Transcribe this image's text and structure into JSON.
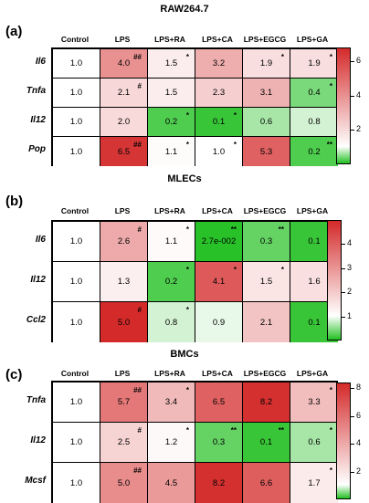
{
  "panels": [
    {
      "label": "(a)",
      "title": "RAW264.7",
      "columns": [
        "Control",
        "LPS",
        "LPS+RA",
        "LPS+CA",
        "LPS+EGCG",
        "LPS+GA"
      ],
      "rows": [
        "Il6",
        "Tnfa",
        "Il12",
        "Pop"
      ],
      "values": [
        [
          "1.0",
          "4.0",
          "1.5",
          "3.2",
          "1.9",
          "1.9"
        ],
        [
          "1.0",
          "2.1",
          "1.5",
          "2.3",
          "3.1",
          "0.4"
        ],
        [
          "1.0",
          "2.0",
          "0.2",
          "0.1",
          "0.6",
          "0.8"
        ],
        [
          "1.0",
          "6.5",
          "1.1",
          "1.0",
          "5.3",
          "0.2"
        ]
      ],
      "numeric": [
        [
          1.0,
          4.0,
          1.5,
          3.2,
          1.9,
          1.9
        ],
        [
          1.0,
          2.1,
          1.5,
          2.3,
          3.1,
          0.4
        ],
        [
          1.0,
          2.0,
          0.2,
          0.1,
          0.6,
          0.8
        ],
        [
          1.0,
          6.5,
          1.1,
          1.0,
          5.3,
          0.2
        ]
      ],
      "sig": [
        [
          "",
          "##",
          "*",
          "",
          "*",
          "*"
        ],
        [
          "",
          "#",
          "",
          "",
          "",
          "*"
        ],
        [
          "",
          "",
          "*",
          "*",
          "",
          ""
        ],
        [
          "",
          "##",
          "*",
          "*",
          "",
          "**"
        ]
      ],
      "scale": {
        "min": 0,
        "max": 6.8
      },
      "ticks": [
        "6",
        "4",
        "2"
      ],
      "tick_values": [
        6,
        4,
        2
      ]
    },
    {
      "label": "(b)",
      "title": "MLECs",
      "columns": [
        "Control",
        "LPS",
        "LPS+RA",
        "LPS+CA",
        "LPS+EGCG",
        "LPS+GA"
      ],
      "rows": [
        "Il6",
        "Il12",
        "Ccl2"
      ],
      "values": [
        [
          "1.0",
          "2.6",
          "1.1",
          "2.7e-002",
          "0.3",
          "0.1"
        ],
        [
          "1.0",
          "1.3",
          "0.2",
          "4.1",
          "1.5",
          "1.6"
        ],
        [
          "1.0",
          "5.0",
          "0.8",
          "0.9",
          "2.1",
          "0.1"
        ]
      ],
      "numeric": [
        [
          1.0,
          2.6,
          1.1,
          0.027,
          0.3,
          0.1
        ],
        [
          1.0,
          1.3,
          0.2,
          4.1,
          1.5,
          1.6
        ],
        [
          1.0,
          5.0,
          0.8,
          0.9,
          2.1,
          0.1
        ]
      ],
      "sig": [
        [
          "",
          "#",
          "*",
          "**",
          "**",
          "**"
        ],
        [
          "",
          "",
          "*",
          "*",
          "*",
          "*"
        ],
        [
          "",
          "#",
          "*",
          "",
          "",
          "**"
        ]
      ],
      "scale": {
        "min": 0,
        "max": 5.0
      },
      "ticks": [
        "4",
        "3",
        "2",
        "1"
      ],
      "tick_values": [
        4,
        3,
        2,
        1
      ]
    },
    {
      "label": "(c)",
      "title": "BMCs",
      "columns": [
        "Control",
        "LPS",
        "LPS+RA",
        "LPS+CA",
        "LPS+EGCG",
        "LPS+GA"
      ],
      "rows": [
        "Tnfa",
        "Il12",
        "Mcsf"
      ],
      "values": [
        [
          "1.0",
          "5.7",
          "3.4",
          "6.5",
          "8.2",
          "3.3"
        ],
        [
          "1.0",
          "2.5",
          "1.2",
          "0.3",
          "0.1",
          "0.6"
        ],
        [
          "1.0",
          "5.0",
          "4.5",
          "8.2",
          "6.6",
          "1.7"
        ]
      ],
      "numeric": [
        [
          1.0,
          5.7,
          3.4,
          6.5,
          8.2,
          3.3
        ],
        [
          1.0,
          2.5,
          1.2,
          0.3,
          0.1,
          0.6
        ],
        [
          1.0,
          5.0,
          4.5,
          8.2,
          6.6,
          1.7
        ]
      ],
      "sig": [
        [
          "",
          "##",
          "*",
          "",
          "",
          "*"
        ],
        [
          "",
          "#",
          "*",
          "**",
          "**",
          "*"
        ],
        [
          "",
          "##",
          "",
          "",
          "",
          "*"
        ]
      ],
      "scale": {
        "min": 0,
        "max": 8.4
      },
      "ticks": [
        "8",
        "6",
        "4",
        "2"
      ],
      "tick_values": [
        8,
        6,
        4,
        2
      ]
    }
  ],
  "chart_data": [
    {
      "type": "heatmap",
      "title": "RAW264.7",
      "x": [
        "Control",
        "LPS",
        "LPS+RA",
        "LPS+CA",
        "LPS+EGCG",
        "LPS+GA"
      ],
      "y": [
        "Il6",
        "Tnfa",
        "Il12",
        "Pop"
      ],
      "z": [
        [
          1.0,
          4.0,
          1.5,
          3.2,
          1.9,
          1.9
        ],
        [
          1.0,
          2.1,
          1.5,
          2.3,
          3.1,
          0.4
        ],
        [
          1.0,
          2.0,
          0.2,
          0.1,
          0.6,
          0.8
        ],
        [
          1.0,
          6.5,
          1.1,
          1.0,
          5.3,
          0.2
        ]
      ],
      "colorbar_ticks": [
        2,
        4,
        6
      ]
    },
    {
      "type": "heatmap",
      "title": "MLECs",
      "x": [
        "Control",
        "LPS",
        "LPS+RA",
        "LPS+CA",
        "LPS+EGCG",
        "LPS+GA"
      ],
      "y": [
        "Il6",
        "Il12",
        "Ccl2"
      ],
      "z": [
        [
          1.0,
          2.6,
          1.1,
          0.027,
          0.3,
          0.1
        ],
        [
          1.0,
          1.3,
          0.2,
          4.1,
          1.5,
          1.6
        ],
        [
          1.0,
          5.0,
          0.8,
          0.9,
          2.1,
          0.1
        ]
      ],
      "colorbar_ticks": [
        1,
        2,
        3,
        4
      ]
    },
    {
      "type": "heatmap",
      "title": "BMCs",
      "x": [
        "Control",
        "LPS",
        "LPS+RA",
        "LPS+CA",
        "LPS+EGCG",
        "LPS+GA"
      ],
      "y": [
        "Tnfa",
        "Il12",
        "Mcsf"
      ],
      "z": [
        [
          1.0,
          5.7,
          3.4,
          6.5,
          8.2,
          3.3
        ],
        [
          1.0,
          2.5,
          1.2,
          0.3,
          0.1,
          0.6
        ],
        [
          1.0,
          5.0,
          4.5,
          8.2,
          6.6,
          1.7
        ]
      ],
      "colorbar_ticks": [
        2,
        4,
        6,
        8
      ]
    }
  ],
  "colors": {
    "low": "#22c022",
    "mid": "#ffffff",
    "high": "#d42a2a"
  }
}
